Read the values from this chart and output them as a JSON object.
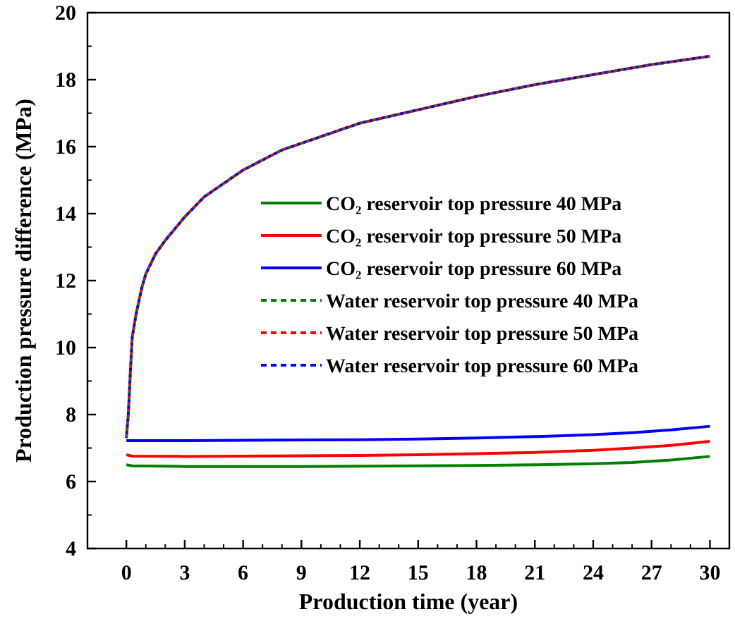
{
  "chart_data": {
    "type": "line",
    "xlabel": "Production time (year)",
    "ylabel": "Production pressure difference (MPa)",
    "xlim": [
      -2,
      31
    ],
    "xticks": [
      0,
      3,
      6,
      9,
      12,
      15,
      18,
      21,
      24,
      27,
      30
    ],
    "ylim": [
      4,
      20
    ],
    "yticks": [
      4,
      6,
      8,
      10,
      12,
      14,
      16,
      18,
      20
    ],
    "grid": false,
    "legend": "right",
    "marker": "none",
    "series": [
      {
        "name": "CO₂ reservoir top pressure 40 MPa",
        "color": "#008000",
        "line_style": "solid",
        "x": [
          0,
          0.3,
          3,
          6,
          9,
          12,
          15,
          18,
          21,
          24,
          26,
          28,
          30
        ],
        "values": [
          6.5,
          6.47,
          6.45,
          6.45,
          6.45,
          6.46,
          6.47,
          6.48,
          6.5,
          6.53,
          6.57,
          6.64,
          6.75
        ]
      },
      {
        "name": "CO₂ reservoir top pressure 50 MPa",
        "color": "#ff0000",
        "line_style": "solid",
        "x": [
          0,
          0.3,
          3,
          6,
          9,
          12,
          15,
          18,
          21,
          24,
          26,
          28,
          30
        ],
        "values": [
          6.8,
          6.76,
          6.75,
          6.76,
          6.77,
          6.78,
          6.8,
          6.83,
          6.87,
          6.93,
          7.0,
          7.08,
          7.2
        ]
      },
      {
        "name": "CO₂ reservoir top pressure 60 MPa",
        "color": "#0000ff",
        "line_style": "solid",
        "x": [
          0,
          0.3,
          3,
          6,
          9,
          12,
          15,
          18,
          21,
          24,
          26,
          28,
          30
        ],
        "values": [
          7.22,
          7.22,
          7.22,
          7.23,
          7.24,
          7.25,
          7.27,
          7.3,
          7.34,
          7.4,
          7.46,
          7.54,
          7.65
        ]
      },
      {
        "name": "Water reservoir top pressure 40 MPa",
        "color": "#008000",
        "line_style": "dashed",
        "x": [
          0,
          0.1,
          0.2,
          0.3,
          0.5,
          0.8,
          1,
          1.5,
          2,
          3,
          4,
          5,
          6,
          8,
          10,
          12,
          15,
          18,
          21,
          24,
          27,
          30
        ],
        "values": [
          7.3,
          8.0,
          9.2,
          10.3,
          11.0,
          11.8,
          12.2,
          12.8,
          13.2,
          13.9,
          14.5,
          14.9,
          15.3,
          15.9,
          16.3,
          16.7,
          17.1,
          17.5,
          17.85,
          18.15,
          18.45,
          18.7
        ]
      },
      {
        "name": "Water reservoir top pressure 50 MPa",
        "color": "#ff0000",
        "line_style": "dashed",
        "x": [
          0,
          0.1,
          0.2,
          0.3,
          0.5,
          0.8,
          1,
          1.5,
          2,
          3,
          4,
          5,
          6,
          8,
          10,
          12,
          15,
          18,
          21,
          24,
          27,
          30
        ],
        "values": [
          7.3,
          8.0,
          9.2,
          10.3,
          11.0,
          11.8,
          12.2,
          12.8,
          13.2,
          13.9,
          14.5,
          14.9,
          15.3,
          15.9,
          16.3,
          16.7,
          17.1,
          17.5,
          17.85,
          18.15,
          18.45,
          18.7
        ]
      },
      {
        "name": "Water reservoir top pressure 60 MPa",
        "color": "#0000ff",
        "line_style": "dashed",
        "x": [
          0,
          0.1,
          0.2,
          0.3,
          0.5,
          0.8,
          1,
          1.5,
          2,
          3,
          4,
          5,
          6,
          8,
          10,
          12,
          15,
          18,
          21,
          24,
          27,
          30
        ],
        "values": [
          7.3,
          8.0,
          9.2,
          10.3,
          11.0,
          11.8,
          12.2,
          12.8,
          13.2,
          13.9,
          14.5,
          14.9,
          15.3,
          15.9,
          16.3,
          16.7,
          17.1,
          17.5,
          17.85,
          18.15,
          18.45,
          18.7
        ]
      }
    ]
  }
}
